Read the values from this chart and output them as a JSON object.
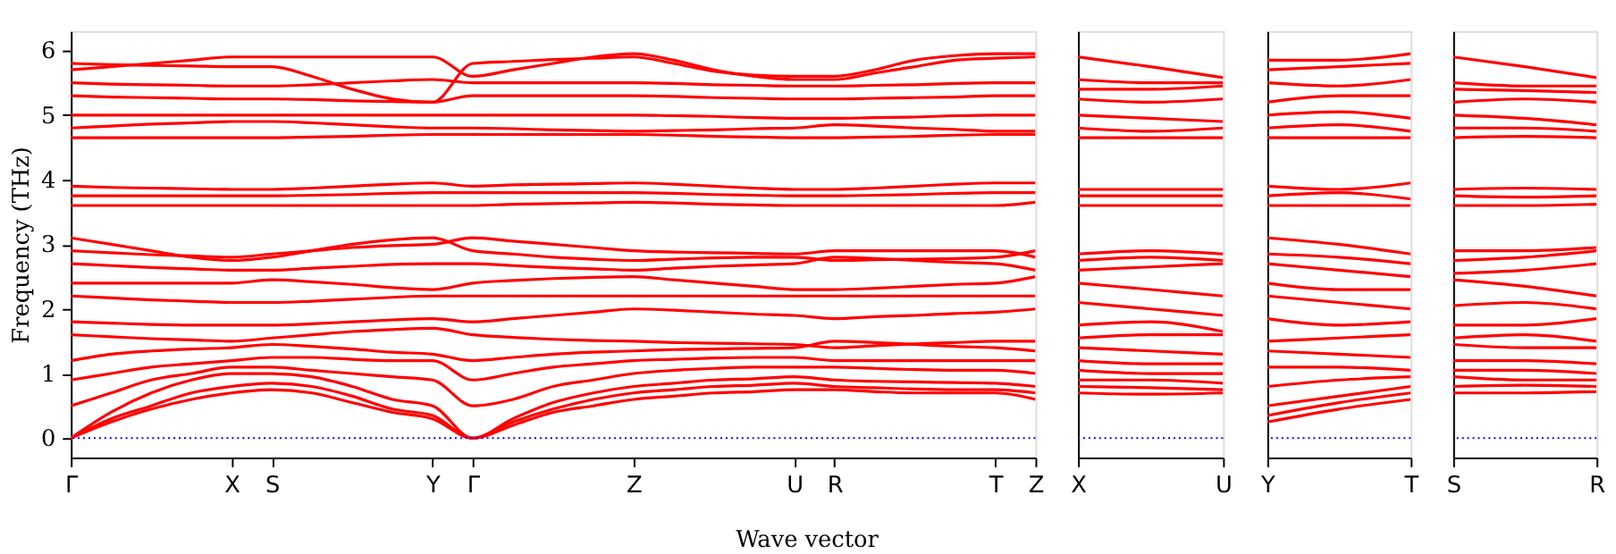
{
  "chart_data": [
    {
      "type": "line",
      "ylabel": "Frequency (THz)",
      "xlabel": "Wave vector",
      "categories": [
        "Γ",
        null,
        null,
        null,
        "X",
        "S",
        null,
        null,
        null,
        "Y",
        "Γ",
        null,
        null,
        null,
        "Z",
        null,
        null,
        null,
        "U",
        "R",
        null,
        null,
        null,
        "T",
        "Z"
      ],
      "ylim": [
        -0.3,
        6.3
      ],
      "yticks": [
        0,
        1,
        2,
        3,
        4,
        5,
        6
      ],
      "grid": false,
      "legend": false,
      "line_style": "solid",
      "marker": "none",
      "ref_lines": [
        {
          "axis": "y",
          "value": 0,
          "color": "#0000ff",
          "line_style": "dotted"
        }
      ],
      "series": [
        {
          "color": "#ff0000",
          "values": [
            0,
            0.25,
            0.45,
            0.6,
            0.7,
            0.75,
            0.7,
            0.55,
            0.4,
            0.3,
            0,
            0.2,
            0.4,
            0.5,
            0.6,
            0.65,
            0.7,
            0.72,
            0.75,
            0.75,
            0.72,
            0.7,
            0.7,
            0.7,
            0.6
          ]
        },
        {
          "color": "#ff0000",
          "values": [
            0,
            0.3,
            0.5,
            0.7,
            0.8,
            0.85,
            0.8,
            0.65,
            0.45,
            0.35,
            0,
            0.25,
            0.45,
            0.6,
            0.7,
            0.75,
            0.8,
            0.82,
            0.85,
            0.8,
            0.78,
            0.76,
            0.75,
            0.75,
            0.7
          ]
        },
        {
          "color": "#ff0000",
          "values": [
            0,
            0.4,
            0.7,
            0.9,
            1.0,
            1.0,
            0.95,
            0.8,
            0.6,
            0.5,
            0,
            0.3,
            0.55,
            0.7,
            0.8,
            0.85,
            0.9,
            0.92,
            0.95,
            0.9,
            0.88,
            0.87,
            0.86,
            0.85,
            0.8
          ]
        },
        {
          "color": "#ff0000",
          "values": [
            0.5,
            0.7,
            0.9,
            1.0,
            1.1,
            1.1,
            1.05,
            1.0,
            0.95,
            0.9,
            0.5,
            0.6,
            0.8,
            0.9,
            1.0,
            1.05,
            1.08,
            1.1,
            1.1,
            1.1,
            1.08,
            1.06,
            1.05,
            1.05,
            1.0
          ]
        },
        {
          "color": "#ff0000",
          "values": [
            0.9,
            1.0,
            1.1,
            1.15,
            1.2,
            1.25,
            1.25,
            1.22,
            1.2,
            1.2,
            0.9,
            1.0,
            1.1,
            1.15,
            1.2,
            1.22,
            1.24,
            1.25,
            1.25,
            1.2,
            1.2,
            1.2,
            1.2,
            1.2,
            1.2
          ]
        },
        {
          "color": "#ff0000",
          "values": [
            1.2,
            1.3,
            1.35,
            1.38,
            1.4,
            1.45,
            1.42,
            1.38,
            1.33,
            1.3,
            1.2,
            1.25,
            1.3,
            1.33,
            1.35,
            1.37,
            1.38,
            1.39,
            1.4,
            1.5,
            1.48,
            1.45,
            1.42,
            1.4,
            1.35
          ]
        },
        {
          "color": "#ff0000",
          "values": [
            1.6,
            1.57,
            1.54,
            1.52,
            1.5,
            1.55,
            1.6,
            1.65,
            1.68,
            1.7,
            1.6,
            1.56,
            1.53,
            1.51,
            1.5,
            1.48,
            1.47,
            1.46,
            1.45,
            1.4,
            1.43,
            1.46,
            1.48,
            1.5,
            1.5
          ]
        },
        {
          "color": "#ff0000",
          "values": [
            1.8,
            1.78,
            1.76,
            1.75,
            1.75,
            1.75,
            1.77,
            1.8,
            1.83,
            1.85,
            1.8,
            1.85,
            1.9,
            1.95,
            2.0,
            1.98,
            1.95,
            1.92,
            1.9,
            1.85,
            1.88,
            1.9,
            1.93,
            1.95,
            2.0
          ]
        },
        {
          "color": "#ff0000",
          "values": [
            2.2,
            2.17,
            2.14,
            2.12,
            2.1,
            2.1,
            2.12,
            2.15,
            2.18,
            2.2,
            2.2,
            2.2,
            2.2,
            2.2,
            2.2,
            2.2,
            2.2,
            2.2,
            2.2,
            2.2,
            2.2,
            2.2,
            2.2,
            2.2,
            2.2
          ]
        },
        {
          "color": "#ff0000",
          "values": [
            2.4,
            2.4,
            2.4,
            2.4,
            2.4,
            2.45,
            2.42,
            2.38,
            2.33,
            2.3,
            2.4,
            2.44,
            2.47,
            2.49,
            2.5,
            2.45,
            2.4,
            2.35,
            2.3,
            2.3,
            2.32,
            2.35,
            2.38,
            2.4,
            2.5
          ]
        },
        {
          "color": "#ff0000",
          "values": [
            2.7,
            2.67,
            2.64,
            2.62,
            2.6,
            2.6,
            2.63,
            2.66,
            2.69,
            2.7,
            2.7,
            2.67,
            2.64,
            2.62,
            2.6,
            2.63,
            2.66,
            2.68,
            2.7,
            2.8,
            2.78,
            2.75,
            2.72,
            2.7,
            2.6
          ]
        },
        {
          "color": "#ff0000",
          "values": [
            2.9,
            2.87,
            2.84,
            2.82,
            2.8,
            2.85,
            2.9,
            2.95,
            2.98,
            3.0,
            3.1,
            3.05,
            3.0,
            2.95,
            2.9,
            2.88,
            2.87,
            2.86,
            2.85,
            2.9,
            2.9,
            2.9,
            2.9,
            2.9,
            2.8
          ]
        },
        {
          "color": "#ff0000",
          "values": [
            3.1,
            3.0,
            2.9,
            2.8,
            2.75,
            2.8,
            2.9,
            3.0,
            3.07,
            3.1,
            2.9,
            2.85,
            2.8,
            2.77,
            2.75,
            2.77,
            2.79,
            2.8,
            2.8,
            2.75,
            2.76,
            2.77,
            2.78,
            2.8,
            2.9
          ]
        },
        {
          "color": "#ff0000",
          "values": [
            3.6,
            3.6,
            3.6,
            3.6,
            3.6,
            3.6,
            3.6,
            3.6,
            3.6,
            3.6,
            3.6,
            3.62,
            3.63,
            3.64,
            3.65,
            3.64,
            3.62,
            3.61,
            3.6,
            3.6,
            3.6,
            3.6,
            3.6,
            3.6,
            3.65
          ]
        },
        {
          "color": "#ff0000",
          "values": [
            3.75,
            3.75,
            3.75,
            3.75,
            3.75,
            3.75,
            3.76,
            3.77,
            3.79,
            3.8,
            3.8,
            3.8,
            3.8,
            3.8,
            3.8,
            3.79,
            3.77,
            3.76,
            3.75,
            3.75,
            3.76,
            3.77,
            3.79,
            3.8,
            3.8
          ]
        },
        {
          "color": "#ff0000",
          "values": [
            3.9,
            3.88,
            3.87,
            3.86,
            3.85,
            3.85,
            3.87,
            3.9,
            3.93,
            3.95,
            3.9,
            3.92,
            3.93,
            3.94,
            3.95,
            3.93,
            3.9,
            3.87,
            3.85,
            3.85,
            3.87,
            3.9,
            3.93,
            3.95,
            3.95
          ]
        },
        {
          "color": "#ff0000",
          "values": [
            4.65,
            4.65,
            4.65,
            4.65,
            4.65,
            4.65,
            4.66,
            4.67,
            4.69,
            4.7,
            4.7,
            4.7,
            4.7,
            4.7,
            4.7,
            4.69,
            4.67,
            4.66,
            4.65,
            4.65,
            4.66,
            4.67,
            4.69,
            4.7,
            4.7
          ]
        },
        {
          "color": "#ff0000",
          "values": [
            4.8,
            4.83,
            4.86,
            4.88,
            4.9,
            4.9,
            4.88,
            4.85,
            4.82,
            4.8,
            4.8,
            4.79,
            4.77,
            4.76,
            4.75,
            4.76,
            4.77,
            4.79,
            4.8,
            4.85,
            4.83,
            4.8,
            4.78,
            4.75,
            4.75
          ]
        },
        {
          "color": "#ff0000",
          "values": [
            5.0,
            5.0,
            5.0,
            5.0,
            5.0,
            5.0,
            5.0,
            5.0,
            5.0,
            5.0,
            5.0,
            5.0,
            5.0,
            5.0,
            5.0,
            4.99,
            4.98,
            4.96,
            4.95,
            4.95,
            4.96,
            4.97,
            4.99,
            5.0,
            5.0
          ]
        },
        {
          "color": "#ff0000",
          "values": [
            5.3,
            5.28,
            5.27,
            5.26,
            5.25,
            5.25,
            5.24,
            5.22,
            5.21,
            5.2,
            5.3,
            5.3,
            5.3,
            5.3,
            5.3,
            5.29,
            5.27,
            5.26,
            5.25,
            5.25,
            5.26,
            5.27,
            5.28,
            5.3,
            5.3
          ]
        },
        {
          "color": "#ff0000",
          "values": [
            5.5,
            5.48,
            5.47,
            5.46,
            5.45,
            5.45,
            5.47,
            5.5,
            5.53,
            5.55,
            5.5,
            5.5,
            5.5,
            5.5,
            5.5,
            5.49,
            5.47,
            5.46,
            5.45,
            5.45,
            5.46,
            5.47,
            5.49,
            5.5,
            5.5
          ]
        },
        {
          "color": "#ff0000",
          "values": [
            5.7,
            5.75,
            5.8,
            5.85,
            5.9,
            5.9,
            5.9,
            5.9,
            5.9,
            5.9,
            5.6,
            5.7,
            5.8,
            5.9,
            5.95,
            5.85,
            5.7,
            5.6,
            5.55,
            5.55,
            5.65,
            5.75,
            5.85,
            5.88,
            5.9
          ]
        },
        {
          "color": "#ff0000",
          "values": [
            5.8,
            5.78,
            5.77,
            5.76,
            5.75,
            5.75,
            5.6,
            5.4,
            5.25,
            5.2,
            5.8,
            5.83,
            5.86,
            5.88,
            5.9,
            5.8,
            5.68,
            5.62,
            5.6,
            5.6,
            5.7,
            5.85,
            5.92,
            5.95,
            5.95
          ]
        }
      ]
    },
    {
      "type": "line",
      "categories": [
        "X",
        null,
        "U"
      ],
      "ylim": [
        -0.3,
        6.3
      ],
      "yticks": [
        0,
        1,
        2,
        3,
        4,
        5,
        6
      ],
      "tick_labels": "x",
      "grid": false,
      "legend": false,
      "line_style": "solid",
      "marker": "none",
      "ref_lines": [
        {
          "axis": "y",
          "value": 0,
          "color": "#0000ff",
          "line_style": "dotted"
        }
      ],
      "series": [
        {
          "color": "#ff0000",
          "values": [
            0.7,
            0.68,
            0.7
          ]
        },
        {
          "color": "#ff0000",
          "values": [
            0.8,
            0.78,
            0.75
          ]
        },
        {
          "color": "#ff0000",
          "values": [
            0.9,
            0.9,
            0.85
          ]
        },
        {
          "color": "#ff0000",
          "values": [
            1.05,
            1.0,
            1.0
          ]
        },
        {
          "color": "#ff0000",
          "values": [
            1.2,
            1.15,
            1.15
          ]
        },
        {
          "color": "#ff0000",
          "values": [
            1.4,
            1.35,
            1.3
          ]
        },
        {
          "color": "#ff0000",
          "values": [
            1.55,
            1.6,
            1.6
          ]
        },
        {
          "color": "#ff0000",
          "values": [
            1.75,
            1.8,
            1.65
          ]
        },
        {
          "color": "#ff0000",
          "values": [
            2.1,
            2.0,
            1.9
          ]
        },
        {
          "color": "#ff0000",
          "values": [
            2.4,
            2.3,
            2.2
          ]
        },
        {
          "color": "#ff0000",
          "values": [
            2.6,
            2.65,
            2.7
          ]
        },
        {
          "color": "#ff0000",
          "values": [
            2.75,
            2.8,
            2.75
          ]
        },
        {
          "color": "#ff0000",
          "values": [
            2.85,
            2.9,
            2.85
          ]
        },
        {
          "color": "#ff0000",
          "values": [
            3.6,
            3.6,
            3.6
          ]
        },
        {
          "color": "#ff0000",
          "values": [
            3.75,
            3.75,
            3.75
          ]
        },
        {
          "color": "#ff0000",
          "values": [
            3.85,
            3.85,
            3.85
          ]
        },
        {
          "color": "#ff0000",
          "values": [
            4.65,
            4.65,
            4.65
          ]
        },
        {
          "color": "#ff0000",
          "values": [
            4.8,
            4.75,
            4.8
          ]
        },
        {
          "color": "#ff0000",
          "values": [
            5.0,
            4.95,
            4.9
          ]
        },
        {
          "color": "#ff0000",
          "values": [
            5.25,
            5.2,
            5.25
          ]
        },
        {
          "color": "#ff0000",
          "values": [
            5.4,
            5.4,
            5.45
          ]
        },
        {
          "color": "#ff0000",
          "values": [
            5.55,
            5.5,
            5.5
          ]
        },
        {
          "color": "#ff0000",
          "values": [
            5.9,
            5.75,
            5.58
          ]
        }
      ]
    },
    {
      "type": "line",
      "categories": [
        "Y",
        null,
        "T"
      ],
      "ylim": [
        -0.3,
        6.3
      ],
      "yticks": [
        0,
        1,
        2,
        3,
        4,
        5,
        6
      ],
      "tick_labels": "x",
      "grid": false,
      "legend": false,
      "line_style": "solid",
      "marker": "none",
      "ref_lines": [
        {
          "axis": "y",
          "value": 0,
          "color": "#0000ff",
          "line_style": "dotted"
        }
      ],
      "series": [
        {
          "color": "#ff0000",
          "values": [
            0.25,
            0.45,
            0.6
          ]
        },
        {
          "color": "#ff0000",
          "values": [
            0.35,
            0.55,
            0.7
          ]
        },
        {
          "color": "#ff0000",
          "values": [
            0.5,
            0.65,
            0.8
          ]
        },
        {
          "color": "#ff0000",
          "values": [
            0.8,
            0.9,
            0.95
          ]
        },
        {
          "color": "#ff0000",
          "values": [
            1.1,
            1.1,
            1.05
          ]
        },
        {
          "color": "#ff0000",
          "values": [
            1.35,
            1.3,
            1.25
          ]
        },
        {
          "color": "#ff0000",
          "values": [
            1.5,
            1.55,
            1.6
          ]
        },
        {
          "color": "#ff0000",
          "values": [
            1.85,
            1.75,
            1.8
          ]
        },
        {
          "color": "#ff0000",
          "values": [
            2.2,
            2.1,
            2.0
          ]
        },
        {
          "color": "#ff0000",
          "values": [
            2.4,
            2.3,
            2.3
          ]
        },
        {
          "color": "#ff0000",
          "values": [
            2.7,
            2.6,
            2.5
          ]
        },
        {
          "color": "#ff0000",
          "values": [
            2.85,
            2.8,
            2.7
          ]
        },
        {
          "color": "#ff0000",
          "values": [
            3.1,
            3.0,
            2.85
          ]
        },
        {
          "color": "#ff0000",
          "values": [
            3.6,
            3.6,
            3.6
          ]
        },
        {
          "color": "#ff0000",
          "values": [
            3.75,
            3.8,
            3.7
          ]
        },
        {
          "color": "#ff0000",
          "values": [
            3.9,
            3.85,
            3.95
          ]
        },
        {
          "color": "#ff0000",
          "values": [
            4.65,
            4.65,
            4.65
          ]
        },
        {
          "color": "#ff0000",
          "values": [
            4.8,
            4.85,
            4.75
          ]
        },
        {
          "color": "#ff0000",
          "values": [
            5.0,
            5.05,
            4.95
          ]
        },
        {
          "color": "#ff0000",
          "values": [
            5.2,
            5.3,
            5.3
          ]
        },
        {
          "color": "#ff0000",
          "values": [
            5.5,
            5.45,
            5.55
          ]
        },
        {
          "color": "#ff0000",
          "values": [
            5.7,
            5.75,
            5.8
          ]
        },
        {
          "color": "#ff0000",
          "values": [
            5.85,
            5.85,
            5.95
          ]
        }
      ]
    },
    {
      "type": "line",
      "categories": [
        "S",
        null,
        "R"
      ],
      "ylim": [
        -0.3,
        6.3
      ],
      "yticks": [
        0,
        1,
        2,
        3,
        4,
        5,
        6
      ],
      "tick_labels": "x",
      "grid": false,
      "legend": false,
      "line_style": "solid",
      "marker": "none",
      "ref_lines": [
        {
          "axis": "y",
          "value": 0,
          "color": "#0000ff",
          "line_style": "dotted"
        }
      ],
      "series": [
        {
          "color": "#ff0000",
          "values": [
            0.7,
            0.7,
            0.72
          ]
        },
        {
          "color": "#ff0000",
          "values": [
            0.8,
            0.82,
            0.8
          ]
        },
        {
          "color": "#ff0000",
          "values": [
            0.95,
            0.9,
            0.9
          ]
        },
        {
          "color": "#ff0000",
          "values": [
            1.05,
            1.05,
            1.0
          ]
        },
        {
          "color": "#ff0000",
          "values": [
            1.2,
            1.2,
            1.15
          ]
        },
        {
          "color": "#ff0000",
          "values": [
            1.45,
            1.4,
            1.4
          ]
        },
        {
          "color": "#ff0000",
          "values": [
            1.55,
            1.6,
            1.5
          ]
        },
        {
          "color": "#ff0000",
          "values": [
            1.75,
            1.75,
            1.85
          ]
        },
        {
          "color": "#ff0000",
          "values": [
            2.05,
            2.1,
            2.0
          ]
        },
        {
          "color": "#ff0000",
          "values": [
            2.45,
            2.35,
            2.2
          ]
        },
        {
          "color": "#ff0000",
          "values": [
            2.55,
            2.6,
            2.7
          ]
        },
        {
          "color": "#ff0000",
          "values": [
            2.75,
            2.8,
            2.9
          ]
        },
        {
          "color": "#ff0000",
          "values": [
            2.9,
            2.9,
            2.95
          ]
        },
        {
          "color": "#ff0000",
          "values": [
            3.6,
            3.6,
            3.62
          ]
        },
        {
          "color": "#ff0000",
          "values": [
            3.75,
            3.73,
            3.75
          ]
        },
        {
          "color": "#ff0000",
          "values": [
            3.85,
            3.87,
            3.85
          ]
        },
        {
          "color": "#ff0000",
          "values": [
            4.65,
            4.67,
            4.65
          ]
        },
        {
          "color": "#ff0000",
          "values": [
            4.8,
            4.8,
            4.75
          ]
        },
        {
          "color": "#ff0000",
          "values": [
            5.0,
            4.95,
            4.85
          ]
        },
        {
          "color": "#ff0000",
          "values": [
            5.2,
            5.25,
            5.2
          ]
        },
        {
          "color": "#ff0000",
          "values": [
            5.4,
            5.38,
            5.35
          ]
        },
        {
          "color": "#ff0000",
          "values": [
            5.5,
            5.45,
            5.45
          ]
        },
        {
          "color": "#ff0000",
          "values": [
            5.9,
            5.75,
            5.58
          ]
        }
      ]
    }
  ]
}
